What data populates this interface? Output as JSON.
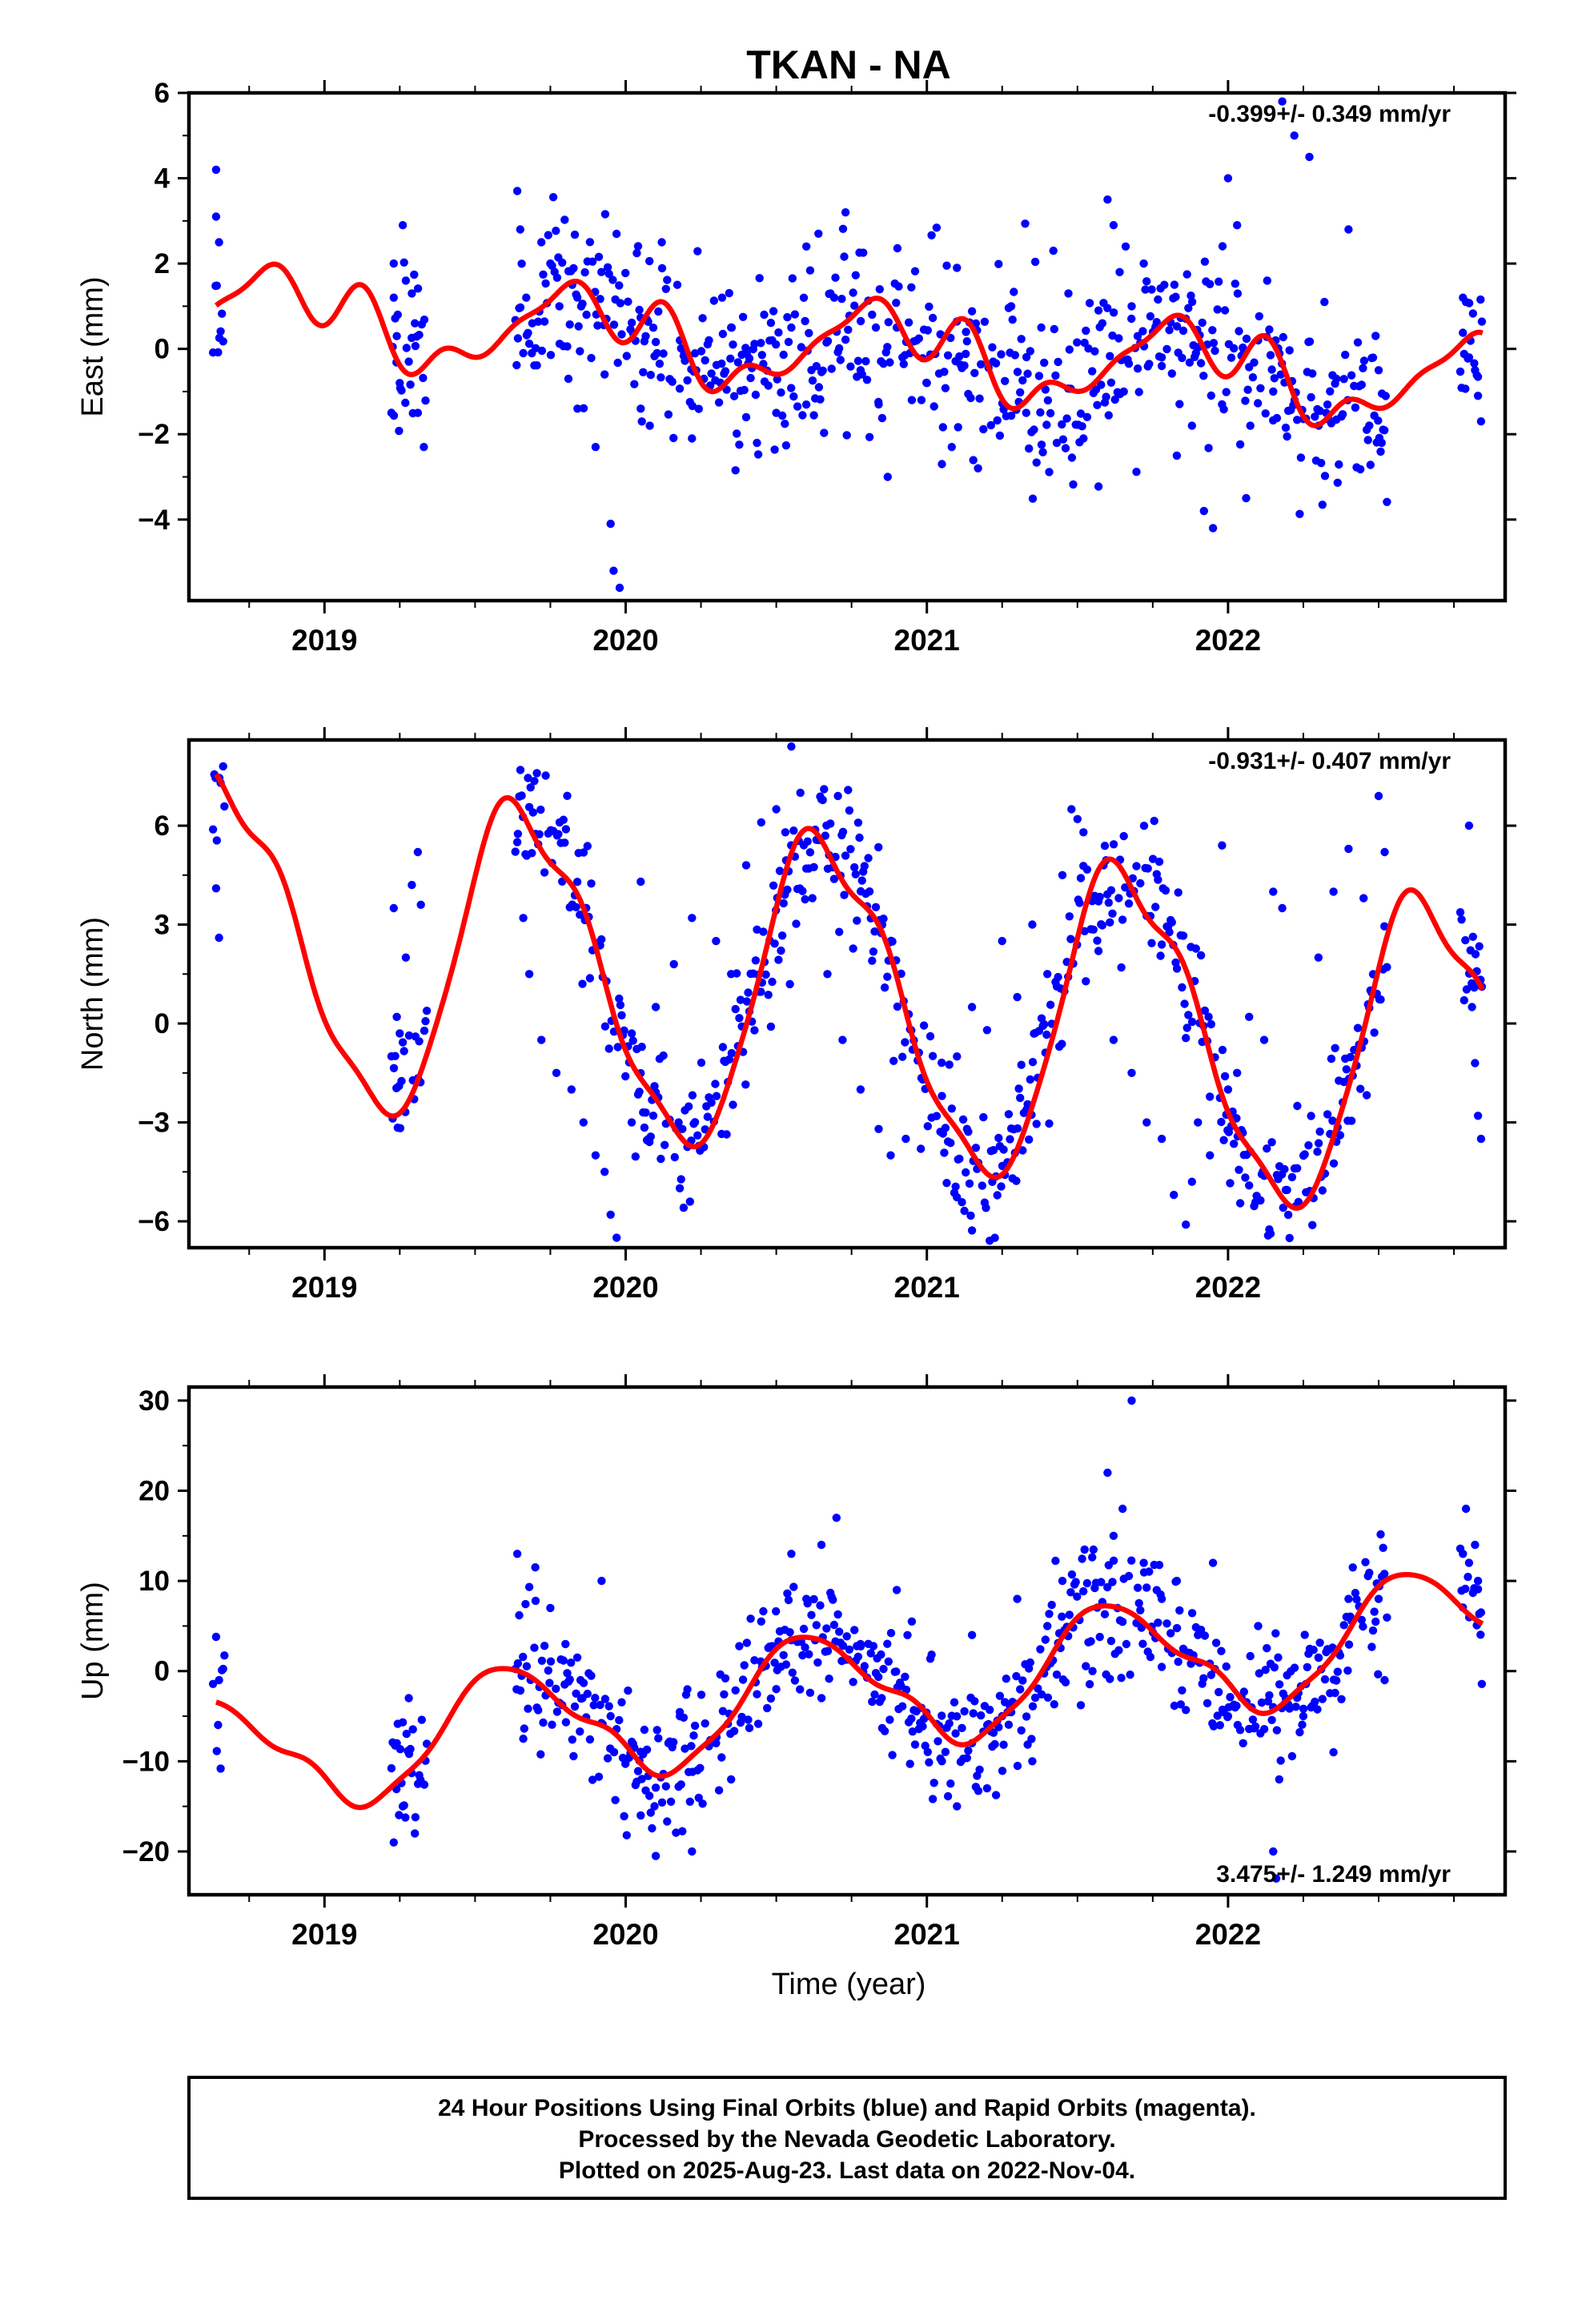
{
  "title": "TKAN - NA",
  "xlabel": "Time (year)",
  "footer": [
    "24 Hour Positions Using Final Orbits (blue) and Rapid Orbits (magenta).",
    "Processed by the Nevada Geodetic Laboratory.",
    "Plotted on 2025-Aug-23. Last data on 2022-Nov-04."
  ],
  "colors": {
    "points": "#0000ff",
    "fit": "#ff0000",
    "axes": "#000000"
  },
  "chart_data": [
    {
      "type": "scatter",
      "ylabel": "East (mm)",
      "rate": "-0.399+/- 0.349 mm/yr",
      "xlim": [
        2018.55,
        2022.92
      ],
      "ylim": [
        -5.9,
        6.0
      ],
      "x_ticks": [
        2019,
        2020,
        2021,
        2022
      ],
      "y_ticks": [
        -4,
        -2,
        0,
        2,
        4,
        6
      ],
      "y_tick_labels": [
        "−4",
        "−2",
        "0",
        "2",
        "4",
        "6"
      ],
      "fit_model": {
        "offset": 0.05,
        "trend": -0.399,
        "seed": 11,
        "noise": 1.05,
        "harmonics": [
          [
            0.55,
            0.4,
            0.2
          ],
          [
            0.35,
            2.1,
            0.4
          ],
          [
            0.25,
            0.3,
            0.3
          ]
        ]
      },
      "series": [
        {
          "name": "Final Orbits",
          "x": [
            2018.64,
            2018.64,
            2018.65,
            2019.23,
            2019.23,
            2019.24,
            2019.25,
            2019.26,
            2019.27,
            2019.28,
            2019.29,
            2019.3,
            2019.31,
            2019.33,
            2019.64,
            2019.65,
            2019.66,
            2019.67,
            2019.69,
            2019.72,
            2019.75,
            2019.78,
            2019.81,
            2019.84,
            2019.87,
            2019.9,
            2019.93,
            2019.95,
            2019.96,
            2019.98,
            2020.05,
            2020.08,
            2020.12,
            2020.18,
            2020.22,
            2020.26,
            2020.32,
            2020.35,
            2020.4,
            2020.46,
            2020.5,
            2020.55,
            2020.6,
            2020.64,
            2020.68,
            2020.73,
            2020.78,
            2020.84,
            2020.87,
            2020.9,
            2020.95,
            2021.0,
            2021.05,
            2021.1,
            2021.13,
            2021.17,
            2021.22,
            2021.28,
            2021.33,
            2021.38,
            2021.42,
            2021.47,
            2021.52,
            2021.57,
            2021.6,
            2021.62,
            2021.64,
            2021.66,
            2021.68,
            2021.7,
            2021.72,
            2021.78,
            2021.83,
            2021.88,
            2021.92,
            2021.95,
            2021.98,
            2022.0,
            2022.03,
            2022.06,
            2022.1,
            2022.13,
            2022.15,
            2022.18,
            2022.22,
            2022.27,
            2022.32,
            2022.36,
            2022.4,
            2022.5,
            2022.51,
            2022.78,
            2022.79,
            2022.8,
            2022.82,
            2022.83,
            2022.84
          ],
          "y": [
            4.2,
            3.1,
            2.5,
            2.0,
            1.2,
            0.3,
            -0.8,
            2.9,
            1.6,
            -0.3,
            1.3,
            0.6,
            -1.5,
            -2.3,
            3.7,
            2.8,
            -0.1,
            1.2,
            0.6,
            2.5,
            2.0,
            1.0,
            -0.7,
            -1.4,
            0.8,
            -2.3,
            -0.6,
            -4.1,
            -5.2,
            -5.6,
            -1.4,
            -1.8,
            2.5,
            0.2,
            -2.1,
            -0.7,
            1.2,
            0.5,
            -1.6,
            0.8,
            -1.5,
            0.5,
            2.4,
            2.7,
            1.3,
            3.2,
            -0.5,
            -1.3,
            -3.0,
            0.5,
            -1.2,
            -0.8,
            -2.7,
            1.9,
            0.4,
            -2.8,
            -0.3,
            1.0,
            -1.5,
            0.5,
            2.3,
            1.3,
            -2.1,
            0.9,
            3.5,
            2.9,
            1.8,
            2.4,
            1.0,
            0.3,
            2.0,
            -0.4,
            -2.5,
            -1.8,
            -3.8,
            -4.2,
            -1.3,
            4.0,
            2.9,
            -3.5,
            0.2,
            1.6,
            -1.0,
            5.8,
            5.0,
            4.5,
            1.1,
            -0.7,
            2.8,
            -0.5,
            -2.2,
            1.2,
            1.1,
            -0.2,
            -0.5,
            -1.1,
            -1.7
          ]
        }
      ]
    },
    {
      "type": "scatter",
      "ylabel": "North (mm)",
      "rate": "-0.931+/- 0.407 mm/yr",
      "xlim": [
        2018.55,
        2022.92
      ],
      "ylim": [
        -6.8,
        8.6
      ],
      "x_ticks": [
        2019,
        2020,
        2021,
        2022
      ],
      "y_ticks": [
        -6,
        -3,
        0,
        3,
        6
      ],
      "y_tick_labels": [
        "−6",
        "−3",
        "0",
        "3",
        "6"
      ],
      "fit_model": {
        "offset": 0.7,
        "trend": -0.931,
        "seed": 23,
        "noise": 1.0,
        "harmonics": [
          [
            4.3,
            2.2,
            0.6
          ],
          [
            0.6,
            1.4,
            0.3
          ],
          [
            0.3,
            0.5,
            0.3
          ]
        ]
      },
      "series": [
        {
          "name": "Final Orbits",
          "x": [
            2018.64,
            2018.65,
            2019.23,
            2019.24,
            2019.25,
            2019.27,
            2019.29,
            2019.31,
            2019.32,
            2019.64,
            2019.66,
            2019.68,
            2019.72,
            2019.77,
            2019.82,
            2019.86,
            2019.9,
            2019.93,
            2019.95,
            2019.97,
            2020.02,
            2020.05,
            2020.1,
            2020.16,
            2020.22,
            2020.3,
            2020.35,
            2020.4,
            2020.45,
            2020.5,
            2020.53,
            2020.55,
            2020.58,
            2020.62,
            2020.67,
            2020.72,
            2020.78,
            2020.84,
            2020.88,
            2020.93,
            2020.98,
            2021.05,
            2021.1,
            2021.15,
            2021.2,
            2021.25,
            2021.3,
            2021.35,
            2021.4,
            2021.45,
            2021.48,
            2021.5,
            2021.52,
            2021.57,
            2021.62,
            2021.68,
            2021.73,
            2021.78,
            2021.82,
            2021.86,
            2021.88,
            2021.9,
            2021.94,
            2021.98,
            2022.0,
            2022.03,
            2022.07,
            2022.12,
            2022.15,
            2022.18,
            2022.23,
            2022.3,
            2022.35,
            2022.4,
            2022.45,
            2022.5,
            2022.52,
            2022.8,
            2022.81,
            2022.82,
            2022.83,
            2022.84
          ],
          "y": [
            4.1,
            2.6,
            3.5,
            0.2,
            -0.3,
            2.0,
            4.2,
            5.2,
            3.6,
            5.5,
            3.2,
            1.5,
            -0.5,
            -1.5,
            -2.0,
            -3.0,
            -4.0,
            -4.5,
            -5.8,
            -6.5,
            -3.0,
            4.3,
            0.5,
            1.8,
            3.2,
            2.5,
            1.5,
            4.8,
            6.1,
            6.5,
            5.8,
            8.4,
            7.0,
            3.8,
            1.5,
            -0.5,
            -2.0,
            -3.2,
            -4.0,
            -3.5,
            -3.8,
            -2.2,
            -1.0,
            0.5,
            -0.2,
            2.5,
            0.8,
            3.0,
            1.5,
            4.5,
            6.5,
            6.2,
            5.8,
            2.2,
            -0.5,
            -1.5,
            -3.0,
            -3.5,
            -5.2,
            -6.1,
            -4.8,
            -3.0,
            -4.0,
            5.4,
            -2.0,
            -1.5,
            0.2,
            -0.5,
            4.0,
            3.5,
            -2.5,
            2.0,
            4.0,
            5.3,
            3.8,
            6.9,
            5.2,
            6.0,
            0.5,
            -1.2,
            -2.8,
            -3.5
          ]
        }
      ]
    },
    {
      "type": "scatter",
      "ylabel": "Up (mm)",
      "rate": "3.475+/- 1.249 mm/yr",
      "xlim": [
        2018.55,
        2022.92
      ],
      "ylim": [
        -24.8,
        31.5
      ],
      "x_ticks": [
        2019,
        2020,
        2021,
        2022
      ],
      "y_ticks": [
        -20,
        -10,
        0,
        10,
        20,
        30
      ],
      "y_tick_labels": [
        "−20",
        "−10",
        "0",
        "10",
        "20",
        "30"
      ],
      "fit_model": {
        "offset": -2.5,
        "trend": 3.475,
        "seed": 37,
        "noise": 3.6,
        "harmonics": [
          [
            6.5,
            2.9,
            0.9
          ],
          [
            2.5,
            0.8,
            0.5
          ],
          [
            1.0,
            1.6,
            0.4
          ]
        ]
      },
      "series": [
        {
          "name": "Final Orbits",
          "x": [
            2018.64,
            2018.65,
            2019.23,
            2019.24,
            2019.26,
            2019.28,
            2019.3,
            2019.64,
            2019.66,
            2019.7,
            2019.75,
            2019.8,
            2019.85,
            2019.92,
            2019.95,
            2020.0,
            2020.05,
            2020.1,
            2020.18,
            2020.22,
            2020.3,
            2020.35,
            2020.45,
            2020.5,
            2020.55,
            2020.6,
            2020.65,
            2020.7,
            2020.78,
            2020.85,
            2020.9,
            2020.95,
            2021.0,
            2021.05,
            2021.1,
            2021.15,
            2021.2,
            2021.25,
            2021.3,
            2021.35,
            2021.4,
            2021.45,
            2021.55,
            2021.6,
            2021.62,
            2021.65,
            2021.68,
            2021.72,
            2021.78,
            2021.83,
            2021.9,
            2021.95,
            2022.0,
            2022.05,
            2022.1,
            2022.15,
            2022.16,
            2022.17,
            2022.25,
            2022.3,
            2022.35,
            2022.4,
            2022.5,
            2022.52,
            2022.78,
            2022.79,
            2022.8,
            2022.82,
            2022.83,
            2022.84
          ],
          "y": [
            3.8,
            -1.0,
            -19.0,
            -8.0,
            -15.0,
            -3.0,
            -18.0,
            13.0,
            -7.5,
            11.5,
            7.0,
            3.0,
            -1.0,
            10.0,
            -5.0,
            -10.0,
            -16.0,
            -20.5,
            -5.0,
            -20.0,
            -8.0,
            -12.0,
            5.5,
            -2.0,
            13.0,
            8.0,
            14.0,
            17.0,
            3.0,
            -3.0,
            9.0,
            5.5,
            -5.0,
            -10.0,
            -15.0,
            4.0,
            -13.0,
            -5.0,
            8.0,
            -10.0,
            5.0,
            10.0,
            0.0,
            22.0,
            15.0,
            18.0,
            30.0,
            12.0,
            8.0,
            10.0,
            4.0,
            12.0,
            -5.0,
            -8.0,
            5.0,
            -20.0,
            -23.0,
            -12.0,
            -5.0,
            1.5,
            -9.0,
            8.0,
            8.0,
            -1.0,
            13.0,
            18.0,
            12.0,
            14.0,
            10.0,
            6.5
          ]
        }
      ]
    }
  ]
}
